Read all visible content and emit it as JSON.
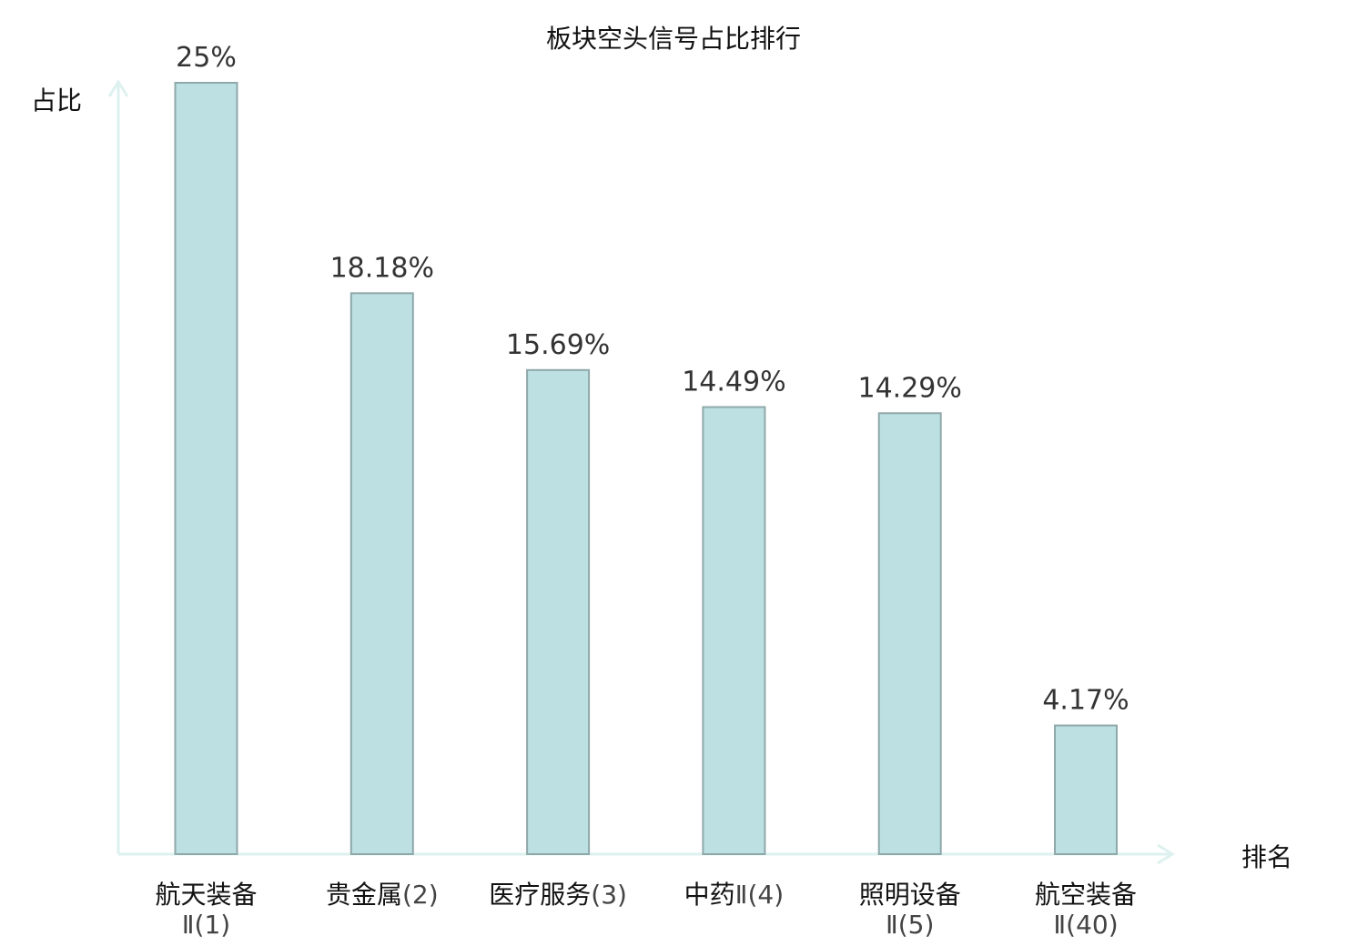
{
  "chart_data": {
    "type": "bar",
    "title": "板块空头信号占比排行",
    "ylabel": "占比",
    "xlabel": "排名",
    "ylim": [
      0,
      25
    ],
    "categories": [
      {
        "name": "航天装备",
        "rank": "Ⅱ(1)"
      },
      {
        "name": "贵金属",
        "rank": "(2)"
      },
      {
        "name": "医疗服务",
        "rank": "(3)"
      },
      {
        "name": "中药",
        "rank": "Ⅱ(4)"
      },
      {
        "name": "照明设备",
        "rank": "Ⅱ(5)"
      },
      {
        "name": "航空装备",
        "rank": "Ⅱ(40)"
      }
    ],
    "values": [
      25,
      18.18,
      15.69,
      14.49,
      14.29,
      4.17
    ],
    "value_labels": [
      "25%",
      "18.18%",
      "15.69%",
      "14.49%",
      "14.29%",
      "4.17%"
    ],
    "highlight_index": 5,
    "colors": {
      "bar_fill": "#bde0e3",
      "bar_stroke": "#8fa8aa",
      "axis": "#ddf1ef",
      "highlight_text": "#e02020",
      "text": "#111111"
    },
    "grid": false,
    "legend": "none"
  }
}
